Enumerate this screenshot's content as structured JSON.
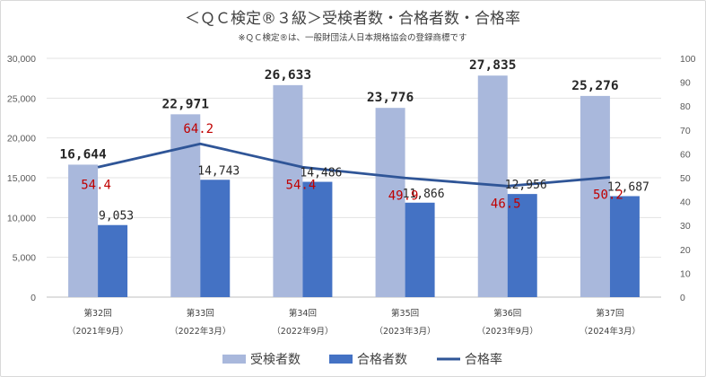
{
  "chart_data": {
    "type": "bar",
    "title": "＜ＱＣ検定®３級＞受検者数・合格者数・合格率",
    "subtitle": "※ＱＣ検定®は、一般財団法人日本規格協会の登録商標です",
    "categories": [
      {
        "line1": "第32回",
        "line2": "（2021年9月）"
      },
      {
        "line1": "第33回",
        "line2": "（2022年3月）"
      },
      {
        "line1": "第34回",
        "line2": "（2022年9月）"
      },
      {
        "line1": "第35回",
        "line2": "（2023年3月）"
      },
      {
        "line1": "第36回",
        "line2": "（2023年9月）"
      },
      {
        "line1": "第37回",
        "line2": "（2024年3月）"
      }
    ],
    "series": [
      {
        "name": "受検者数",
        "type": "bar",
        "axis": "left",
        "color": "#a9b8dc",
        "values": [
          16644,
          22971,
          26633,
          23776,
          27835,
          25276
        ],
        "labels": [
          "16,644",
          "22,971",
          "26,633",
          "23,776",
          "27,835",
          "25,276"
        ]
      },
      {
        "name": "合格者数",
        "type": "bar",
        "axis": "left",
        "color": "#4472c4",
        "values": [
          9053,
          14743,
          14486,
          11866,
          12956,
          12687
        ],
        "labels": [
          "9,053",
          "14,743",
          "14,486",
          "11,866",
          "12,956",
          "12,687"
        ]
      },
      {
        "name": "合格率",
        "type": "line",
        "axis": "right",
        "color": "#2f5597",
        "values": [
          54.4,
          64.2,
          54.4,
          49.9,
          46.5,
          50.2
        ],
        "labels": [
          "54.4",
          "64.2",
          "54.4",
          "49.9",
          "46.5",
          "50.2"
        ]
      }
    ],
    "yleft": {
      "min": 0,
      "max": 30000,
      "step": 5000,
      "ticks": [
        "0",
        "5,000",
        "10,000",
        "15,000",
        "20,000",
        "25,000",
        "30,000"
      ]
    },
    "yright": {
      "min": 0,
      "max": 100,
      "step": 10,
      "ticks": [
        "0",
        "10",
        "20",
        "30",
        "40",
        "50",
        "60",
        "70",
        "80",
        "90",
        "100"
      ]
    },
    "grid": true,
    "legend_position": "bottom"
  }
}
